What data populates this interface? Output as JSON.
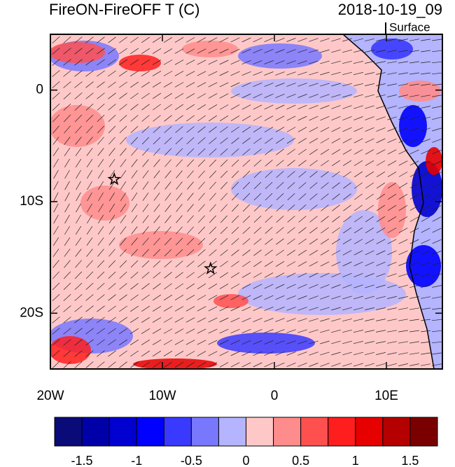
{
  "chart_data": {
    "type": "map",
    "title": "FireON-FireOFF T (C)",
    "date": "2018-10-19_09",
    "subtitle": "Surface",
    "xlim": [
      -20,
      15
    ],
    "ylim": [
      -25,
      5
    ],
    "xticks": [
      {
        "value": -20,
        "label": "20W"
      },
      {
        "value": -10,
        "label": "10W"
      },
      0,
      {
        "value": 10,
        "label": "10E"
      }
    ],
    "yticks": [
      0,
      {
        "value": -10,
        "label": "10S"
      },
      {
        "value": -20,
        "label": "20S"
      }
    ],
    "markers": [
      {
        "lon": -14.3,
        "lat": -8
      },
      {
        "lon": -5.7,
        "lat": -16
      }
    ],
    "colorbar": {
      "lim": [
        -1.75,
        1.75
      ],
      "colors": [
        "#0a0a78",
        "#0000a8",
        "#0000d0",
        "#0000ff",
        "#3a3aff",
        "#7878ff",
        "#b4b4ff",
        "#ffc8c8",
        "#ff8c8c",
        "#ff5050",
        "#ff1e1e",
        "#e60000",
        "#b40000",
        "#7a0000"
      ],
      "ticks": [
        -1.5,
        -1,
        -0.5,
        0,
        0.5,
        1,
        1.5
      ]
    }
  }
}
